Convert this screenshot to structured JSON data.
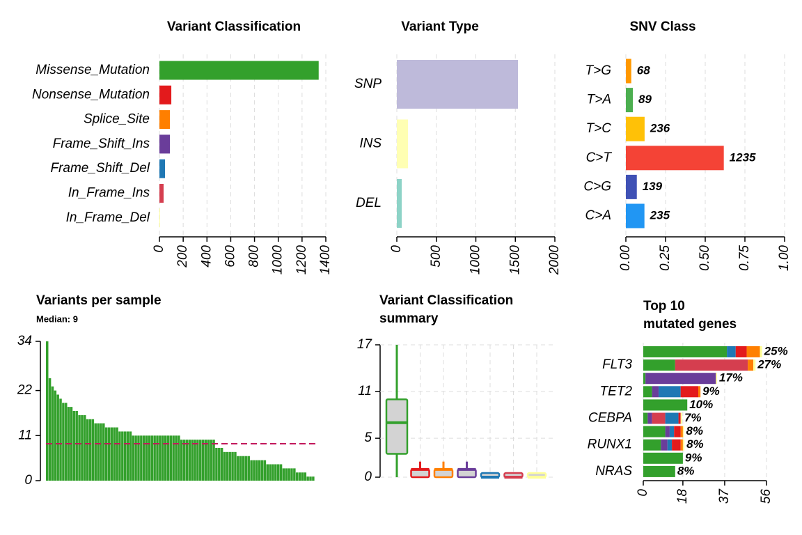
{
  "chart_data": [
    {
      "type": "bar",
      "horizontal": true,
      "title": "Variant Classification",
      "categories": [
        "Missense_Mutation",
        "Nonsense_Mutation",
        "Splice_Site",
        "Frame_Shift_Ins",
        "Frame_Shift_Del",
        "In_Frame_Ins",
        "In_Frame_Del"
      ],
      "values": [
        1340,
        100,
        88,
        88,
        47,
        35,
        5
      ],
      "colors": [
        "#33a02c",
        "#e31a1c",
        "#ff7f00",
        "#6a3d9a",
        "#1f78b4",
        "#d53e4f",
        "#ffff99"
      ],
      "xlim": [
        0,
        1400
      ],
      "xticks": [
        0,
        200,
        400,
        600,
        800,
        1000,
        1200,
        1400
      ],
      "grid": true
    },
    {
      "type": "bar",
      "horizontal": true,
      "title": "Variant Type",
      "categories": [
        "SNP",
        "INS",
        "DEL"
      ],
      "values": [
        1533,
        141,
        62
      ],
      "colors": [
        "#bebada",
        "#ffffb3",
        "#8dd3c7"
      ],
      "xlim": [
        0,
        2000
      ],
      "xticks": [
        0,
        500,
        1000,
        1500,
        2000
      ],
      "grid": true
    },
    {
      "type": "bar",
      "horizontal": true,
      "title": "SNV Class",
      "categories": [
        "T>G",
        "T>A",
        "T>C",
        "C>T",
        "C>G",
        "C>A"
      ],
      "values": [
        0.034,
        0.044,
        0.118,
        0.617,
        0.069,
        0.117
      ],
      "counts": [
        68,
        89,
        236,
        1235,
        139,
        235
      ],
      "colors": [
        "#ff9800",
        "#4caf50",
        "#ffc107",
        "#f44336",
        "#3f51b5",
        "#2196f3"
      ],
      "xlim": [
        0,
        1
      ],
      "xticks": [
        {
          "value": 0,
          "label": "0.00"
        },
        {
          "value": 0.25,
          "label": "0.25"
        },
        {
          "value": 0.5,
          "label": "0.50"
        },
        {
          "value": 0.75,
          "label": "0.75"
        },
        {
          "value": 1,
          "label": "1.00"
        }
      ],
      "grid": true
    },
    {
      "type": "bar",
      "title": "Variants per sample",
      "subtitle": "Median: 9",
      "median": 9,
      "color": "#33a02c",
      "median_color": "#c2185b",
      "values": [
        34,
        25,
        23,
        22,
        21,
        20,
        19,
        19,
        18,
        18,
        17,
        17,
        16,
        16,
        16,
        15,
        15,
        15,
        14,
        14,
        14,
        14,
        13,
        13,
        13,
        13,
        13,
        12,
        12,
        12,
        12,
        12,
        11,
        11,
        11,
        11,
        11,
        11,
        11,
        11,
        11,
        11,
        11,
        11,
        11,
        11,
        11,
        11,
        11,
        11,
        10,
        10,
        10,
        10,
        10,
        10,
        10,
        10,
        10,
        10,
        10,
        10,
        10,
        8,
        8,
        8,
        7,
        7,
        7,
        7,
        7,
        6,
        6,
        6,
        6,
        6,
        5,
        5,
        5,
        5,
        5,
        5,
        4,
        4,
        4,
        4,
        4,
        4,
        3,
        3,
        3,
        3,
        3,
        2,
        2,
        2,
        2,
        1,
        1,
        1
      ],
      "ylim": [
        0,
        34
      ],
      "yticks": [
        0,
        11,
        22,
        34
      ]
    },
    {
      "type": "box",
      "title": [
        "Variant Classification",
        "summary"
      ],
      "categories": [
        null,
        null,
        null,
        null,
        null,
        null,
        null
      ],
      "colors": [
        "#33a02c",
        "#e31a1c",
        "#ff7f00",
        "#6a3d9a",
        "#1f78b4",
        "#d53e4f",
        "#ffff99"
      ],
      "boxes": [
        {
          "min": 0,
          "q1": 3,
          "median": 7,
          "q3": 10,
          "max": 17
        },
        {
          "min": 0,
          "q1": 0,
          "median": 1,
          "q3": 1,
          "max": 2
        },
        {
          "min": 0,
          "q1": 0,
          "median": 1,
          "q3": 1,
          "max": 2
        },
        {
          "min": 0,
          "q1": 0,
          "median": 1,
          "q3": 1,
          "max": 2
        },
        {
          "min": 0,
          "q1": 0,
          "median": 0,
          "q3": 0,
          "max": 0
        },
        {
          "min": 0,
          "q1": 0,
          "median": 0,
          "q3": 0,
          "max": 0
        },
        {
          "min": 0,
          "q1": 0,
          "median": 0,
          "q3": 0,
          "max": 0
        }
      ],
      "ylim": [
        0,
        17
      ],
      "yticks": [
        0,
        5,
        11,
        17
      ],
      "grid": true
    },
    {
      "type": "bar",
      "horizontal": true,
      "title": [
        "Top 10",
        "mutated genes"
      ],
      "categories": [
        null,
        "FLT3",
        null,
        "TET2",
        null,
        "CEBPA",
        null,
        "RUNX1",
        null,
        "NRAS"
      ],
      "series": [
        {
          "color": "#33a02c",
          "values": [
            38,
            14.5,
            1,
            4,
            20,
            2,
            10,
            8,
            18,
            14.5
          ]
        },
        {
          "color": "#6a3d9a",
          "values": [
            0,
            0,
            32,
            3,
            0,
            2,
            2,
            3,
            0,
            0
          ]
        },
        {
          "color": "#d53e4f",
          "values": [
            0,
            33,
            0,
            0,
            0,
            6,
            0,
            0,
            0,
            0
          ]
        },
        {
          "color": "#1f78b4",
          "values": [
            4,
            0,
            0,
            10,
            0,
            6,
            2,
            2,
            0,
            0
          ]
        },
        {
          "color": "#e31a1c",
          "values": [
            5,
            0,
            0,
            8,
            0,
            1,
            3,
            4,
            0,
            0
          ]
        },
        {
          "color": "#ff7f00",
          "values": [
            6,
            2.5,
            0,
            1,
            0,
            0,
            1,
            1,
            0,
            0
          ]
        },
        {
          "color": "#ffff99",
          "values": [
            1,
            1,
            0.5,
            0,
            0,
            0.7,
            0.5,
            0.7,
            0,
            0
          ]
        }
      ],
      "percent_labels": [
        "25%",
        "27%",
        "17%",
        "9%",
        "10%",
        "7%",
        "8%",
        "8%",
        "9%",
        "8%"
      ],
      "xlim": [
        0,
        56
      ],
      "xticks": [
        0,
        18,
        37,
        56
      ],
      "grid": true
    }
  ]
}
